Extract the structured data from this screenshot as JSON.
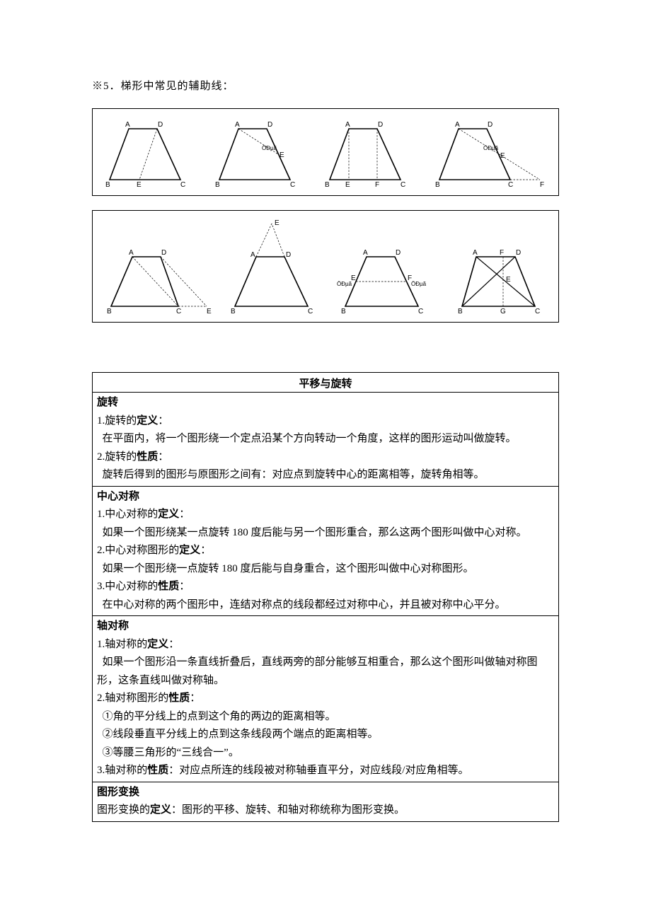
{
  "heading": "※5．梯形中常见的辅助线：",
  "labels": {
    "A": "A",
    "B": "B",
    "C": "C",
    "D": "D",
    "E": "E",
    "F": "F",
    "G": "G",
    "mid": "ÖÐµã"
  },
  "fig_style": {
    "stroke": "#000000",
    "stroke_width_main": 1.6,
    "stroke_width_aux": 0.7,
    "dash": "2.5,2",
    "label_font_size": 10,
    "mid_font_size": 8
  },
  "box_title": "平移与旋转",
  "sections": [
    {
      "head": "旋转",
      "lines": [
        {
          "t": "1.旋转的<b>定义</b>："
        },
        {
          "t": "在平面内，将一个图形绕一个定点沿某个方向转动一个角度，这样的图形运动叫做旋转。",
          "indent": true
        },
        {
          "t": "2.旋转的<b>性质</b>："
        },
        {
          "t": "旋转后得到的图形与原图形之间有：对应点到旋转中心的距离相等，旋转角相等。",
          "indent": true
        }
      ]
    },
    {
      "head": "中心对称",
      "lines": [
        {
          "t": "1.中心对称的<b>定义</b>："
        },
        {
          "t": "如果一个图形绕某一点旋转 180 度后能与另一个图形重合，那么这两个图形叫做中心对称。",
          "indent": true
        },
        {
          "t": "2.中心对称图形的<b>定义</b>："
        },
        {
          "t": "如果一个图形绕一点旋转 180 度后能与自身重合，这个图形叫做中心对称图形。",
          "indent": true
        },
        {
          "t": "3.中心对称的<b>性质</b>："
        },
        {
          "t": "在中心对称的两个图形中，连结对称点的线段都经过对称中心，并且被对称中心平分。",
          "indent": true
        }
      ]
    },
    {
      "head": "轴对称",
      "lines": [
        {
          "t": "1.轴对称的<b>定义</b>："
        },
        {
          "t": "如果一个图形沿一条直线折叠后，直线两旁的部分能够互相重合，那么这个图形叫做轴对称图形，这条直线叫做对称轴。",
          "indent": true
        },
        {
          "t": "2.轴对称图形的<b>性质</b>："
        },
        {
          "t": "①角的平分线上的点到这个角的两边的距离相等。",
          "indent": true
        },
        {
          "t": "②线段垂直平分线上的点到这条线段两个端点的距离相等。",
          "indent": true
        },
        {
          "t": "③等腰三角形的“三线合一”。",
          "indent": true
        },
        {
          "t": "3.轴对称的<b>性质</b>：对应点所连的线段被对称轴垂直平分，对应线段/对应角相等。"
        }
      ]
    },
    {
      "head": "图形变换",
      "lines": [
        {
          "t": "图形变换的<b>定义</b>：图形的平移、旋转、和轴对称统称为图形变换。"
        }
      ]
    }
  ]
}
